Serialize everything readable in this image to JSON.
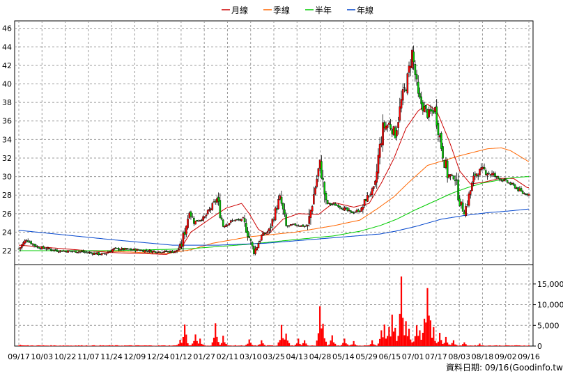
{
  "chart_data": {
    "type": "candlestick",
    "title": "",
    "legend": {
      "placement": "top-center",
      "items": [
        {
          "name": "月線",
          "color": "#cc0000"
        },
        {
          "name": "季線",
          "color": "#ff6600"
        },
        {
          "name": "半年",
          "color": "#00cc00"
        },
        {
          "name": "年線",
          "color": "#0044cc"
        }
      ]
    },
    "price_axis": {
      "ylim": [
        20.5,
        46.8
      ],
      "ticks": [
        "22",
        "24",
        "26",
        "28",
        "30",
        "32",
        "34",
        "36",
        "38",
        "40",
        "42",
        "44",
        "46"
      ],
      "grid": true
    },
    "volume_axis": {
      "ylim": [
        0,
        18000
      ],
      "ticks": [
        "0",
        "5,000",
        "10,000",
        "15,000"
      ],
      "position": "right"
    },
    "x_ticks": [
      "09/17",
      "10/03",
      "10/22",
      "11/07",
      "11/24",
      "12/09",
      "12/24",
      "01/12",
      "01/27",
      "02/11",
      "03/10",
      "03/25",
      "04/13",
      "04/28",
      "05/14",
      "05/29",
      "06/15",
      "07/01",
      "07/17",
      "08/03",
      "08/18",
      "09/02",
      "09/16"
    ],
    "candle_colors": {
      "up": "#ff0000",
      "down": "#00cc00",
      "flat": "#000000"
    },
    "volume_color": "#ff0000",
    "price_anchors": [
      [
        0,
        22.2
      ],
      [
        5,
        23.2
      ],
      [
        12,
        22.4
      ],
      [
        25,
        22.0
      ],
      [
        40,
        21.9
      ],
      [
        55,
        21.6
      ],
      [
        62,
        22.2
      ],
      [
        75,
        22.1
      ],
      [
        90,
        21.9
      ],
      [
        102,
        21.9
      ],
      [
        106,
        22.7
      ],
      [
        111,
        26.3
      ],
      [
        114,
        25.1
      ],
      [
        121,
        25.6
      ],
      [
        129,
        27.6
      ],
      [
        133,
        24.7
      ],
      [
        140,
        25.3
      ],
      [
        146,
        25.3
      ],
      [
        150,
        23.4
      ],
      [
        153,
        21.8
      ],
      [
        158,
        23.6
      ],
      [
        163,
        24.2
      ],
      [
        170,
        27.8
      ],
      [
        174,
        24.6
      ],
      [
        180,
        24.8
      ],
      [
        188,
        24.6
      ],
      [
        196,
        31.5
      ],
      [
        200,
        27.1
      ],
      [
        208,
        26.9
      ],
      [
        216,
        26.1
      ],
      [
        223,
        26.4
      ],
      [
        226,
        27.6
      ],
      [
        232,
        28.9
      ],
      [
        234,
        32.1
      ],
      [
        237,
        35.2
      ],
      [
        241,
        35.7
      ],
      [
        245,
        34.6
      ],
      [
        249,
        38.1
      ],
      [
        253,
        40.5
      ],
      [
        256,
        43.5
      ],
      [
        260,
        38.5
      ],
      [
        266,
        36.7
      ],
      [
        271,
        37.2
      ],
      [
        275,
        33.3
      ],
      [
        279,
        30.2
      ],
      [
        284,
        29.8
      ],
      [
        287,
        27.3
      ],
      [
        290,
        26.1
      ],
      [
        294,
        28.5
      ],
      [
        297,
        30.3
      ],
      [
        303,
        30.7
      ],
      [
        310,
        30.0
      ],
      [
        318,
        29.4
      ],
      [
        323,
        28.9
      ],
      [
        328,
        28.2
      ],
      [
        332,
        28.1
      ]
    ],
    "moving_averages": {
      "月線": [
        [
          0,
          22.6
        ],
        [
          30,
          22.2
        ],
        [
          60,
          21.8
        ],
        [
          96,
          21.6
        ],
        [
          105,
          22.1
        ],
        [
          112,
          24.0
        ],
        [
          125,
          25.5
        ],
        [
          135,
          26.6
        ],
        [
          145,
          27.1
        ],
        [
          150,
          26.0
        ],
        [
          156,
          24.3
        ],
        [
          162,
          23.7
        ],
        [
          172,
          25.4
        ],
        [
          182,
          26.0
        ],
        [
          195,
          25.9
        ],
        [
          205,
          27.2
        ],
        [
          218,
          26.7
        ],
        [
          228,
          27.1
        ],
        [
          236,
          29.3
        ],
        [
          244,
          31.9
        ],
        [
          252,
          35.2
        ],
        [
          260,
          37.1
        ],
        [
          266,
          37.8
        ],
        [
          272,
          37.1
        ],
        [
          280,
          33.9
        ],
        [
          287,
          30.6
        ],
        [
          294,
          29.2
        ],
        [
          303,
          29.4
        ],
        [
          313,
          29.8
        ],
        [
          322,
          29.8
        ],
        [
          331,
          28.8
        ]
      ],
      "季線": [
        [
          0,
          22.0
        ],
        [
          50,
          22.0
        ],
        [
          96,
          21.7
        ],
        [
          112,
          22.1
        ],
        [
          126,
          22.8
        ],
        [
          150,
          23.5
        ],
        [
          180,
          24.0
        ],
        [
          205,
          24.7
        ],
        [
          222,
          25.3
        ],
        [
          234,
          26.6
        ],
        [
          244,
          27.8
        ],
        [
          254,
          29.4
        ],
        [
          266,
          31.2
        ],
        [
          286,
          32.2
        ],
        [
          305,
          33.0
        ],
        [
          314,
          33.1
        ],
        [
          320,
          32.8
        ],
        [
          332,
          31.6
        ]
      ],
      "半年": [
        [
          0,
          22.0
        ],
        [
          60,
          22.0
        ],
        [
          110,
          22.2
        ],
        [
          150,
          22.7
        ],
        [
          180,
          23.2
        ],
        [
          205,
          23.6
        ],
        [
          222,
          24.1
        ],
        [
          235,
          24.7
        ],
        [
          246,
          25.4
        ],
        [
          258,
          26.4
        ],
        [
          270,
          27.3
        ],
        [
          282,
          28.2
        ],
        [
          292,
          28.8
        ],
        [
          302,
          29.3
        ],
        [
          312,
          29.6
        ],
        [
          322,
          29.9
        ],
        [
          332,
          30.0
        ]
      ],
      "年線": [
        [
          0,
          24.2
        ],
        [
          30,
          23.7
        ],
        [
          60,
          23.2
        ],
        [
          100,
          22.6
        ],
        [
          130,
          22.6
        ],
        [
          160,
          22.8
        ],
        [
          190,
          23.2
        ],
        [
          220,
          23.6
        ],
        [
          235,
          23.8
        ],
        [
          245,
          24.1
        ],
        [
          258,
          24.6
        ],
        [
          275,
          25.4
        ],
        [
          290,
          25.8
        ],
        [
          305,
          26.1
        ],
        [
          320,
          26.3
        ],
        [
          332,
          26.5
        ]
      ]
    },
    "volume_spikes": [
      [
        1,
        300
      ],
      [
        105,
        1500
      ],
      [
        108,
        5200
      ],
      [
        115,
        2800
      ],
      [
        118,
        1800
      ],
      [
        128,
        5500
      ],
      [
        133,
        2500
      ],
      [
        150,
        1600
      ],
      [
        158,
        1400
      ],
      [
        171,
        5100
      ],
      [
        174,
        3000
      ],
      [
        182,
        1800
      ],
      [
        186,
        1400
      ],
      [
        196,
        9600
      ],
      [
        198,
        5400
      ],
      [
        204,
        2600
      ],
      [
        212,
        1800
      ],
      [
        218,
        1200
      ],
      [
        230,
        1400
      ],
      [
        236,
        3800
      ],
      [
        238,
        5200
      ],
      [
        241,
        4600
      ],
      [
        243,
        7600
      ],
      [
        245,
        4400
      ],
      [
        249,
        16800
      ],
      [
        252,
        6000
      ],
      [
        254,
        4200
      ],
      [
        259,
        5000
      ],
      [
        261,
        3800
      ],
      [
        264,
        6600
      ],
      [
        266,
        14000
      ],
      [
        268,
        6200
      ],
      [
        270,
        4600
      ],
      [
        274,
        3200
      ],
      [
        278,
        2200
      ],
      [
        283,
        1400
      ],
      [
        290,
        900
      ],
      [
        300,
        600
      ]
    ]
  },
  "footer": {
    "date_label": "資料日期: 09/16",
    "source": "(Goodinfo.tw)"
  }
}
